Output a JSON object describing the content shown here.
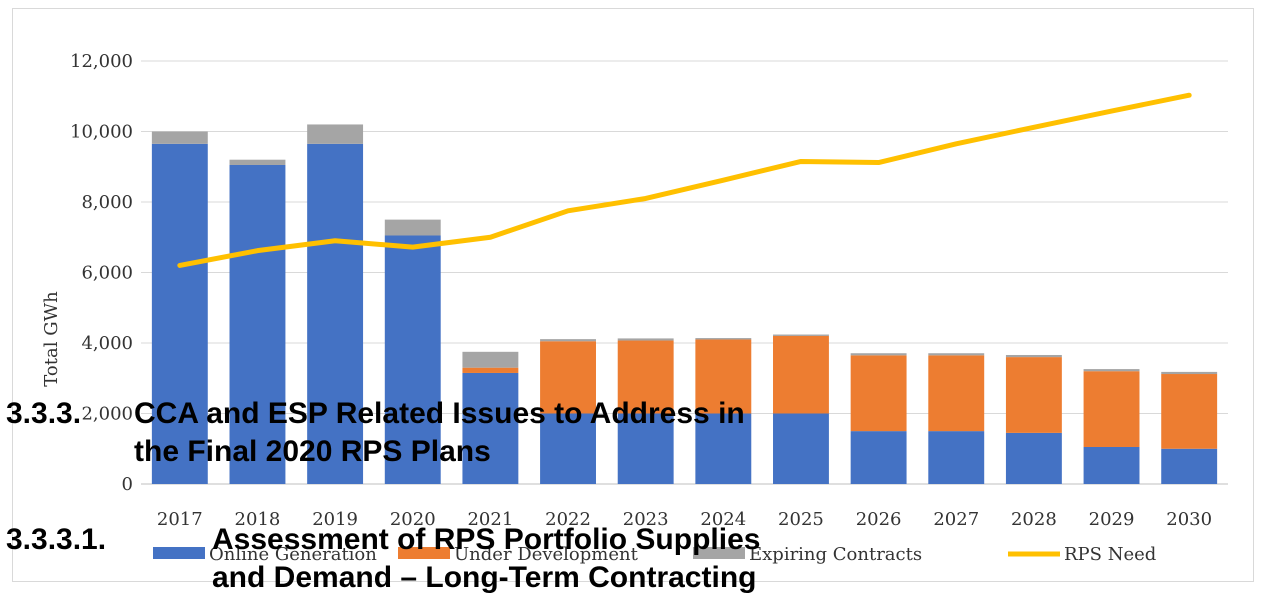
{
  "chart_data": {
    "type": "bar",
    "stacked": true,
    "title": "",
    "xlabel": "",
    "ylabel": "Total GWh",
    "ylim": [
      0,
      12000
    ],
    "yticks": [
      "0",
      "2,000",
      "4,000",
      "6,000",
      "8,000",
      "10,000",
      "12,000"
    ],
    "ytick_values": [
      0,
      2000,
      4000,
      6000,
      8000,
      10000,
      12000
    ],
    "grid": true,
    "legend_position": "bottom",
    "categories": [
      "2017",
      "2018",
      "2019",
      "2020",
      "2021",
      "2022",
      "2023",
      "2024",
      "2025",
      "2026",
      "2027",
      "2028",
      "2029",
      "2030"
    ],
    "series": [
      {
        "name": "Online Generation",
        "kind": "bar",
        "color": "#4472C4",
        "values": [
          9650,
          9050,
          9650,
          7050,
          3150,
          2000,
          2000,
          2000,
          2000,
          1500,
          1500,
          1450,
          1050,
          1000
        ]
      },
      {
        "name": "Under Development",
        "kind": "bar",
        "color": "#ED7D31",
        "values": [
          0,
          0,
          0,
          0,
          150,
          2050,
          2070,
          2100,
          2200,
          2150,
          2150,
          2150,
          2150,
          2120
        ]
      },
      {
        "name": "Expiring Contracts",
        "kind": "bar",
        "color": "#A5A5A5",
        "values": [
          350,
          150,
          550,
          450,
          450,
          60,
          60,
          40,
          40,
          60,
          60,
          60,
          60,
          60
        ]
      },
      {
        "name": "RPS Need",
        "kind": "line",
        "color": "#FFC000",
        "values": [
          6200,
          6620,
          6900,
          6720,
          7000,
          7750,
          8100,
          8620,
          9150,
          9120,
          9650,
          10120,
          10580,
          11030
        ]
      }
    ]
  },
  "overlay_headings": [
    {
      "number": "3.3.3.",
      "text": "CCA and ESP Related Issues to Address in",
      "line2": "the Final 2020 RPS Plans"
    },
    {
      "number": "3.3.3.1.",
      "text": "Assessment of RPS Portfolio Supplies",
      "line2": "and Demand – Long-Term Contracting"
    }
  ]
}
